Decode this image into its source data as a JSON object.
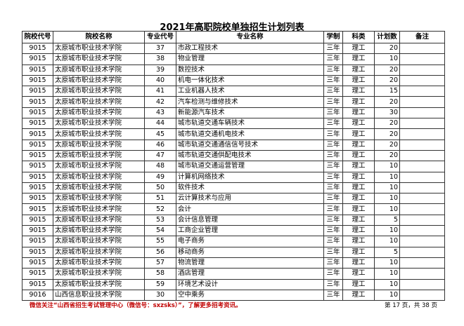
{
  "title": "2021年高职院校单独招生计划列表",
  "headers": [
    "院校代号",
    "院校名称",
    "专业代号",
    "专业名称",
    "学制",
    "科类",
    "计划数",
    "备注"
  ],
  "rows": [
    [
      "9015",
      "太原城市职业技术学院",
      "37",
      "市政工程技术",
      "三年",
      "理工",
      "20",
      ""
    ],
    [
      "9015",
      "太原城市职业技术学院",
      "38",
      "物业管理",
      "三年",
      "理工",
      "10",
      ""
    ],
    [
      "9015",
      "太原城市职业技术学院",
      "39",
      "数控技术",
      "三年",
      "理工",
      "20",
      ""
    ],
    [
      "9015",
      "太原城市职业技术学院",
      "40",
      "机电一体化技术",
      "三年",
      "理工",
      "20",
      ""
    ],
    [
      "9015",
      "太原城市职业技术学院",
      "41",
      "工业机器人技术",
      "三年",
      "理工",
      "15",
      ""
    ],
    [
      "9015",
      "太原城市职业技术学院",
      "42",
      "汽车检测与维修技术",
      "三年",
      "理工",
      "20",
      ""
    ],
    [
      "9015",
      "太原城市职业技术学院",
      "43",
      "新能源汽车技术",
      "三年",
      "理工",
      "30",
      ""
    ],
    [
      "9015",
      "太原城市职业技术学院",
      "44",
      "城市轨道交通车辆技术",
      "三年",
      "理工",
      "20",
      ""
    ],
    [
      "9015",
      "太原城市职业技术学院",
      "45",
      "城市轨道交通机电技术",
      "三年",
      "理工",
      "20",
      ""
    ],
    [
      "9015",
      "太原城市职业技术学院",
      "46",
      "城市轨道交通通信信号技术",
      "三年",
      "理工",
      "20",
      ""
    ],
    [
      "9015",
      "太原城市职业技术学院",
      "47",
      "城市轨道交通供配电技术",
      "三年",
      "理工",
      "20",
      ""
    ],
    [
      "9015",
      "太原城市职业技术学院",
      "48",
      "城市轨道交通运营管理",
      "三年",
      "理工",
      "10",
      ""
    ],
    [
      "9015",
      "太原城市职业技术学院",
      "49",
      "计算机网络技术",
      "三年",
      "理工",
      "10",
      ""
    ],
    [
      "9015",
      "太原城市职业技术学院",
      "50",
      "软件技术",
      "三年",
      "理工",
      "10",
      ""
    ],
    [
      "9015",
      "太原城市职业技术学院",
      "51",
      "云计算技术与应用",
      "三年",
      "理工",
      "10",
      ""
    ],
    [
      "9015",
      "太原城市职业技术学院",
      "52",
      "会计",
      "三年",
      "理工",
      "10",
      ""
    ],
    [
      "9015",
      "太原城市职业技术学院",
      "53",
      "会计信息管理",
      "三年",
      "理工",
      "5",
      ""
    ],
    [
      "9015",
      "太原城市职业技术学院",
      "54",
      "工商企业管理",
      "三年",
      "理工",
      "10",
      ""
    ],
    [
      "9015",
      "太原城市职业技术学院",
      "55",
      "电子商务",
      "三年",
      "理工",
      "10",
      ""
    ],
    [
      "9015",
      "太原城市职业技术学院",
      "56",
      "移动商务",
      "三年",
      "理工",
      "5",
      ""
    ],
    [
      "9015",
      "太原城市职业技术学院",
      "57",
      "物流管理",
      "三年",
      "理工",
      "10",
      ""
    ],
    [
      "9015",
      "太原城市职业技术学院",
      "58",
      "酒店管理",
      "三年",
      "理工",
      "10",
      ""
    ],
    [
      "9015",
      "太原城市职业技术学院",
      "59",
      "环境艺术设计",
      "三年",
      "理工",
      "10",
      ""
    ],
    [
      "9016",
      "山西信息职业技术学院",
      "30",
      "空中乘务",
      "三年",
      "理工",
      "10",
      ""
    ]
  ],
  "footer_note": "微信关注“山西省招生考试管理中心（微信号：sxzsks）”，了解更多招考资讯。",
  "page_info": "第 17 页，共 38 页",
  "colors": {
    "note": "#c00000"
  }
}
